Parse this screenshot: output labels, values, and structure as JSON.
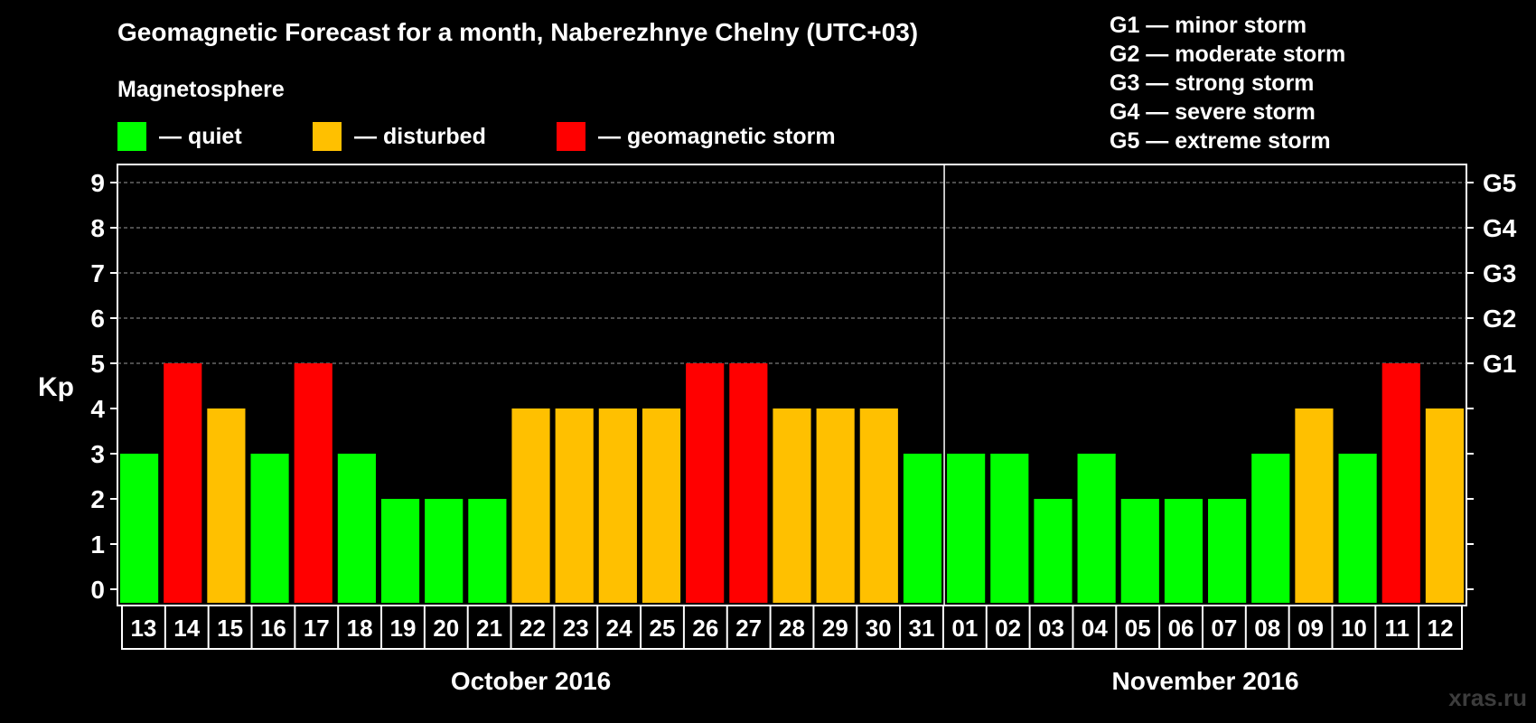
{
  "title": "Geomagnetic Forecast for a month, Naberezhnye Chelny (UTC+03)",
  "magnetosphere_label": "Magnetosphere",
  "legend": [
    {
      "label": "— quiet",
      "color": "#00ff00"
    },
    {
      "label": "— disturbed",
      "color": "#ffc000"
    },
    {
      "label": "— geomagnetic storm",
      "color": "#ff0000"
    }
  ],
  "storm_scale": [
    "G1 — minor storm",
    "G2 — moderate storm",
    "G3 — strong storm",
    "G4 — severe storm",
    "G5 — extreme storm"
  ],
  "watermark": "xras.ru",
  "colors": {
    "quiet": "#00ff00",
    "disturbed": "#ffc000",
    "storm": "#ff0000",
    "background": "#000000",
    "axis": "#ffffff",
    "grid": "#9a9a9a"
  },
  "chart_data": {
    "type": "bar",
    "title": "Geomagnetic Forecast for a month, Naberezhnye Chelny (UTC+03)",
    "ylabel": "Kp",
    "ylim": [
      0,
      9
    ],
    "yticks": [
      "0",
      "1",
      "2",
      "3",
      "4",
      "5",
      "6",
      "7",
      "8",
      "9"
    ],
    "right_axis": [
      {
        "kp": 5,
        "label": "G1"
      },
      {
        "kp": 6,
        "label": "G2"
      },
      {
        "kp": 7,
        "label": "G3"
      },
      {
        "kp": 8,
        "label": "G4"
      },
      {
        "kp": 9,
        "label": "G5"
      }
    ],
    "grid": "dashed horizontal lines at Kp 5–9",
    "categories": [
      "13",
      "14",
      "15",
      "16",
      "17",
      "18",
      "19",
      "20",
      "21",
      "22",
      "23",
      "24",
      "25",
      "26",
      "27",
      "28",
      "29",
      "30",
      "31",
      "01",
      "02",
      "03",
      "04",
      "05",
      "06",
      "07",
      "08",
      "09",
      "10",
      "11",
      "12"
    ],
    "values": [
      3,
      5,
      4,
      3,
      5,
      3,
      2,
      2,
      2,
      4,
      4,
      4,
      4,
      5,
      5,
      4,
      4,
      4,
      3,
      3,
      3,
      2,
      3,
      2,
      2,
      2,
      3,
      4,
      3,
      5,
      4
    ],
    "color_rule": "Kp <= 3 quiet (green), Kp = 4 disturbed (orange), Kp >= 5 geomagnetic storm (red)",
    "month_groups": [
      {
        "label": "October 2016",
        "start_index": 0,
        "count": 19
      },
      {
        "label": "November 2016",
        "start_index": 19,
        "count": 12
      }
    ]
  }
}
